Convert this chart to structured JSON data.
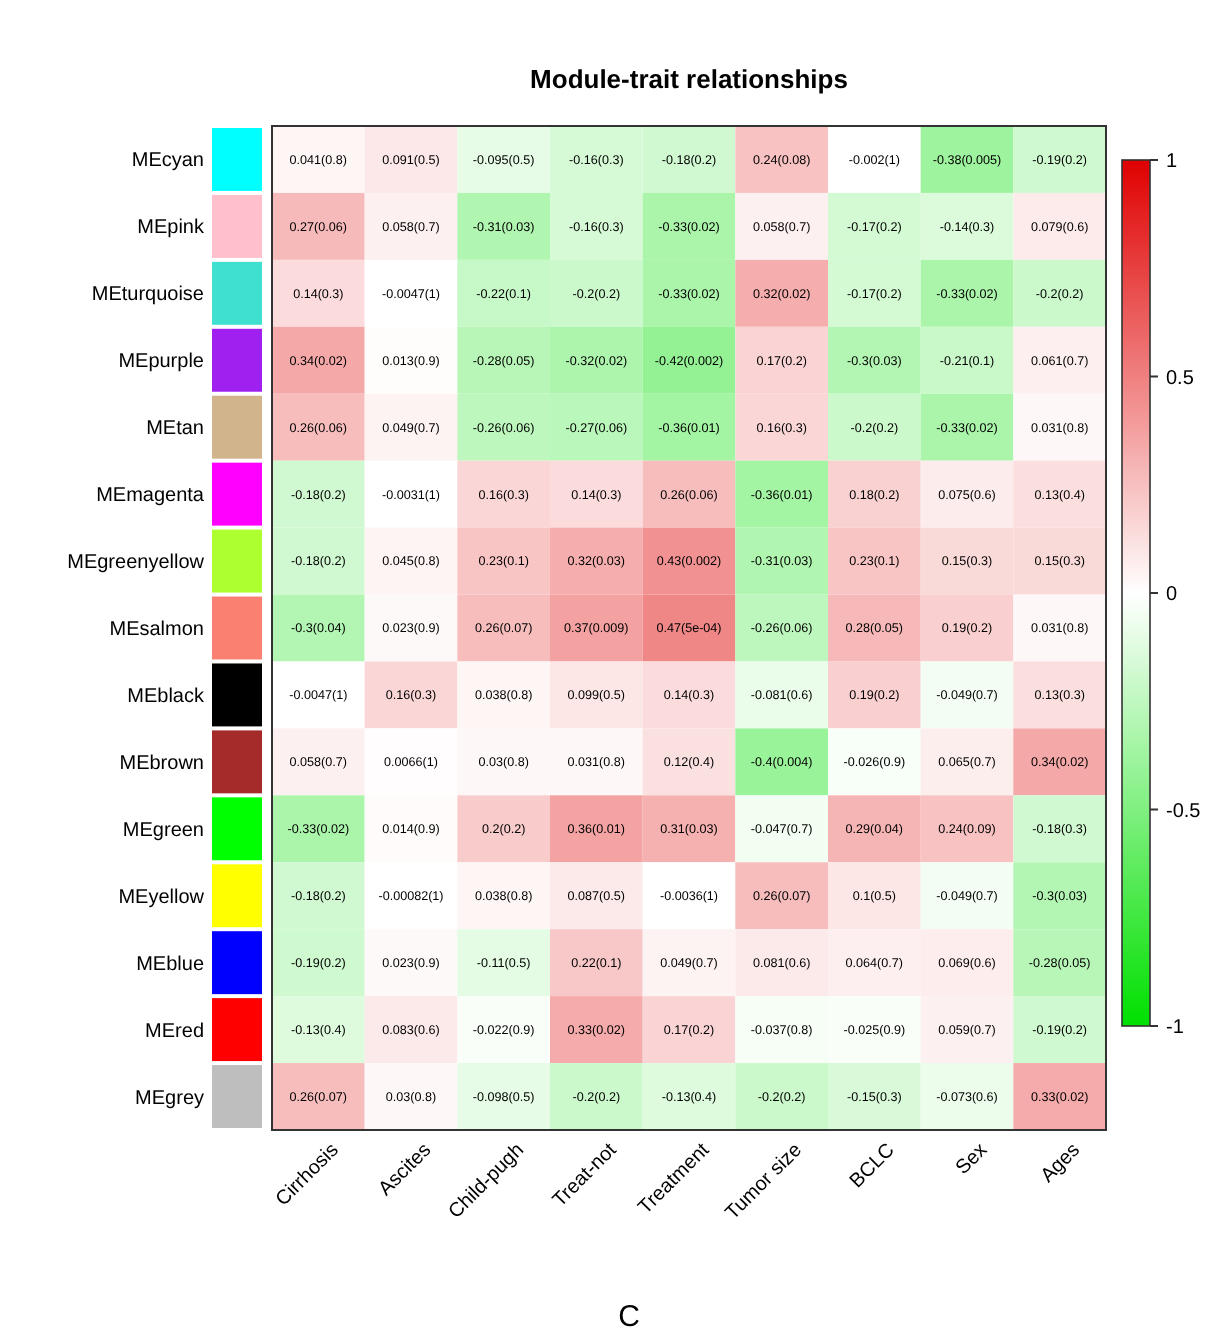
{
  "chart_data": {
    "type": "heatmap",
    "title": "Module-trait relationships",
    "categories": [
      "Cirrhosis",
      "Ascites",
      "Child-pugh",
      "Treat-not",
      "Treatment",
      "Tumor size",
      "BCLC",
      "Sex",
      "Ages"
    ],
    "y_categories": [
      "MEcyan",
      "MEpink",
      "MEturquoise",
      "MEpurple",
      "MEtan",
      "MEmagenta",
      "MEgreenyellow",
      "MEsalmon",
      "MEblack",
      "MEbrown",
      "MEgreen",
      "MEyellow",
      "MEblue",
      "MEred",
      "MEgrey"
    ],
    "cells": [
      [
        0.041,
        0.091,
        -0.095,
        -0.16,
        -0.18,
        0.24,
        -0.002,
        -0.38,
        -0.19
      ],
      [
        0.27,
        0.058,
        -0.31,
        -0.16,
        -0.33,
        0.058,
        -0.17,
        -0.14,
        0.079
      ],
      [
        0.14,
        -0.0047,
        -0.22,
        -0.2,
        -0.33,
        0.32,
        -0.17,
        -0.33,
        -0.2
      ],
      [
        0.34,
        0.013,
        -0.28,
        -0.32,
        -0.42,
        0.17,
        -0.3,
        -0.21,
        0.061
      ],
      [
        0.26,
        0.049,
        -0.26,
        -0.27,
        -0.36,
        0.16,
        -0.2,
        -0.33,
        0.031
      ],
      [
        -0.18,
        -0.0031,
        0.16,
        0.14,
        0.26,
        -0.36,
        0.18,
        0.075,
        0.13
      ],
      [
        -0.18,
        0.045,
        0.23,
        0.32,
        0.43,
        -0.31,
        0.23,
        0.15,
        0.15
      ],
      [
        -0.3,
        0.023,
        0.26,
        0.37,
        0.47,
        -0.26,
        0.28,
        0.19,
        0.031
      ],
      [
        -0.0047,
        0.16,
        0.038,
        0.099,
        0.14,
        -0.081,
        0.19,
        -0.049,
        0.13
      ],
      [
        0.058,
        0.0066,
        0.03,
        0.031,
        0.12,
        -0.4,
        -0.026,
        0.065,
        0.34
      ],
      [
        -0.33,
        0.014,
        0.2,
        0.36,
        0.31,
        -0.047,
        0.29,
        0.24,
        -0.18
      ],
      [
        -0.18,
        -0.00082,
        0.038,
        0.087,
        -0.0036,
        0.26,
        0.1,
        -0.049,
        -0.3
      ],
      [
        -0.19,
        0.023,
        -0.11,
        0.22,
        0.049,
        0.081,
        0.064,
        0.069,
        -0.28
      ],
      [
        -0.13,
        0.083,
        -0.022,
        0.33,
        0.17,
        -0.037,
        -0.025,
        0.059,
        -0.19
      ],
      [
        0.26,
        0.03,
        -0.098,
        -0.2,
        -0.13,
        -0.2,
        -0.15,
        -0.073,
        0.33
      ]
    ],
    "cell_labels": [
      [
        "0.041(0.8)",
        "0.091(0.5)",
        "-0.095(0.5)",
        "-0.16(0.3)",
        "-0.18(0.2)",
        "0.24(0.08)",
        "-0.002(1)",
        "-0.38(0.005)",
        "-0.19(0.2)"
      ],
      [
        "0.27(0.06)",
        "0.058(0.7)",
        "-0.31(0.03)",
        "-0.16(0.3)",
        "-0.33(0.02)",
        "0.058(0.7)",
        "-0.17(0.2)",
        "-0.14(0.3)",
        "0.079(0.6)"
      ],
      [
        "0.14(0.3)",
        "-0.0047(1)",
        "-0.22(0.1)",
        "-0.2(0.2)",
        "-0.33(0.02)",
        "0.32(0.02)",
        "-0.17(0.2)",
        "-0.33(0.02)",
        "-0.2(0.2)"
      ],
      [
        "0.34(0.02)",
        "0.013(0.9)",
        "-0.28(0.05)",
        "-0.32(0.02)",
        "-0.42(0.002)",
        "0.17(0.2)",
        "-0.3(0.03)",
        "-0.21(0.1)",
        "0.061(0.7)"
      ],
      [
        "0.26(0.06)",
        "0.049(0.7)",
        "-0.26(0.06)",
        "-0.27(0.06)",
        "-0.36(0.01)",
        "0.16(0.3)",
        "-0.2(0.2)",
        "-0.33(0.02)",
        "0.031(0.8)"
      ],
      [
        "-0.18(0.2)",
        "-0.0031(1)",
        "0.16(0.3)",
        "0.14(0.3)",
        "0.26(0.06)",
        "-0.36(0.01)",
        "0.18(0.2)",
        "0.075(0.6)",
        "0.13(0.4)"
      ],
      [
        "-0.18(0.2)",
        "0.045(0.8)",
        "0.23(0.1)",
        "0.32(0.03)",
        "0.43(0.002)",
        "-0.31(0.03)",
        "0.23(0.1)",
        "0.15(0.3)",
        "0.15(0.3)"
      ],
      [
        "-0.3(0.04)",
        "0.023(0.9)",
        "0.26(0.07)",
        "0.37(0.009)",
        "0.47(5e-04)",
        "-0.26(0.06)",
        "0.28(0.05)",
        "0.19(0.2)",
        "0.031(0.8)"
      ],
      [
        "-0.0047(1)",
        "0.16(0.3)",
        "0.038(0.8)",
        "0.099(0.5)",
        "0.14(0.3)",
        "-0.081(0.6)",
        "0.19(0.2)",
        "-0.049(0.7)",
        "0.13(0.3)"
      ],
      [
        "0.058(0.7)",
        "0.0066(1)",
        "0.03(0.8)",
        "0.031(0.8)",
        "0.12(0.4)",
        "-0.4(0.004)",
        "-0.026(0.9)",
        "0.065(0.7)",
        "0.34(0.02)"
      ],
      [
        "-0.33(0.02)",
        "0.014(0.9)",
        "0.2(0.2)",
        "0.36(0.01)",
        "0.31(0.03)",
        "-0.047(0.7)",
        "0.29(0.04)",
        "0.24(0.09)",
        "-0.18(0.3)"
      ],
      [
        "-0.18(0.2)",
        "-0.00082(1)",
        "0.038(0.8)",
        "0.087(0.5)",
        "-0.0036(1)",
        "0.26(0.07)",
        "0.1(0.5)",
        "-0.049(0.7)",
        "-0.3(0.03)"
      ],
      [
        "-0.19(0.2)",
        "0.023(0.9)",
        "-0.11(0.5)",
        "0.22(0.1)",
        "0.049(0.7)",
        "0.081(0.6)",
        "0.064(0.7)",
        "0.069(0.6)",
        "-0.28(0.05)"
      ],
      [
        "-0.13(0.4)",
        "0.083(0.6)",
        "-0.022(0.9)",
        "0.33(0.02)",
        "0.17(0.2)",
        "-0.037(0.8)",
        "-0.025(0.9)",
        "0.059(0.7)",
        "-0.19(0.2)"
      ],
      [
        "0.26(0.07)",
        "0.03(0.8)",
        "-0.098(0.5)",
        "-0.2(0.2)",
        "-0.13(0.4)",
        "-0.2(0.2)",
        "-0.15(0.3)",
        "-0.073(0.6)",
        "0.33(0.02)"
      ]
    ],
    "clim": [
      -1,
      1
    ],
    "cticks": [
      -1,
      -0.5,
      0,
      0.5,
      1
    ],
    "annotations": [
      "C"
    ]
  }
}
